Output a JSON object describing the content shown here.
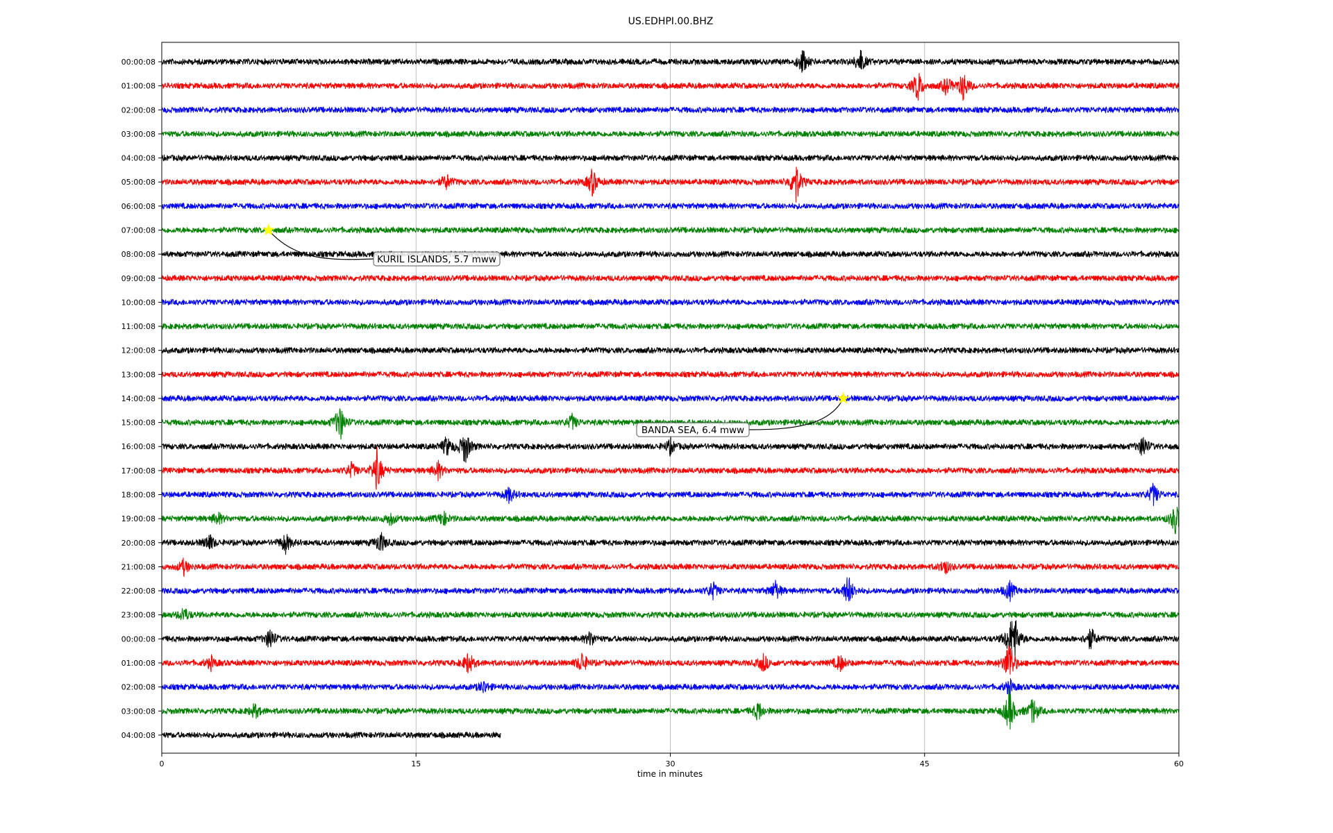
{
  "chart_data": {
    "type": "line",
    "title": "US.EDHPI.00.BHZ",
    "xlabel": "time in minutes",
    "xlim": [
      0,
      60
    ],
    "x_ticks": [
      0,
      15,
      30,
      45,
      60
    ],
    "grid": "vertical",
    "row_labels": [
      "00:00:08",
      "01:00:08",
      "02:00:08",
      "03:00:08",
      "04:00:08",
      "05:00:08",
      "06:00:08",
      "07:00:08",
      "08:00:08",
      "09:00:08",
      "10:00:08",
      "11:00:08",
      "12:00:08",
      "13:00:08",
      "14:00:08",
      "15:00:08",
      "16:00:08",
      "17:00:08",
      "18:00:08",
      "19:00:08",
      "20:00:08",
      "21:00:08",
      "22:00:08",
      "23:00:08",
      "00:00:08",
      "01:00:08",
      "02:00:08",
      "03:00:08",
      "04:00:08"
    ],
    "trace_colors": [
      "#000000",
      "#ff0000",
      "#0000ff",
      "#008000"
    ],
    "last_row_end_minute": 20,
    "events": [
      {
        "label": "KURIL ISLANDS, 5.7 mww",
        "row": 7,
        "minute": 6.3,
        "marker_color": "#ffff00"
      },
      {
        "label": "BANDA SEA, 6.4 mww",
        "row": 14,
        "minute": 40.2,
        "marker_color": "#ffff00"
      }
    ],
    "bursts": [
      {
        "row": 0,
        "minute": 37.8,
        "amplitude": 1.0
      },
      {
        "row": 0,
        "minute": 41.2,
        "amplitude": 1.0
      },
      {
        "row": 1,
        "minute": 44.6,
        "amplitude": 1.3
      },
      {
        "row": 1,
        "minute": 46.3,
        "amplitude": 0.7
      },
      {
        "row": 1,
        "minute": 47.3,
        "amplitude": 1.2
      },
      {
        "row": 5,
        "minute": 16.8,
        "amplitude": 0.6
      },
      {
        "row": 5,
        "minute": 25.4,
        "amplitude": 1.1
      },
      {
        "row": 5,
        "minute": 37.4,
        "amplitude": 1.8
      },
      {
        "row": 15,
        "minute": 10.5,
        "amplitude": 1.6
      },
      {
        "row": 15,
        "minute": 24.2,
        "amplitude": 0.6
      },
      {
        "row": 16,
        "minute": 16.8,
        "amplitude": 0.8
      },
      {
        "row": 16,
        "minute": 17.9,
        "amplitude": 1.5
      },
      {
        "row": 16,
        "minute": 30.0,
        "amplitude": 0.6
      },
      {
        "row": 16,
        "minute": 57.9,
        "amplitude": 0.9
      },
      {
        "row": 17,
        "minute": 11.2,
        "amplitude": 0.6
      },
      {
        "row": 17,
        "minute": 12.7,
        "amplitude": 1.7
      },
      {
        "row": 17,
        "minute": 16.3,
        "amplitude": 0.7
      },
      {
        "row": 18,
        "minute": 20.5,
        "amplitude": 0.6
      },
      {
        "row": 18,
        "minute": 58.5,
        "amplitude": 0.9
      },
      {
        "row": 19,
        "minute": 3.3,
        "amplitude": 0.5
      },
      {
        "row": 19,
        "minute": 13.5,
        "amplitude": 0.5
      },
      {
        "row": 19,
        "minute": 16.6,
        "amplitude": 0.6
      },
      {
        "row": 19,
        "minute": 59.8,
        "amplitude": 1.3
      },
      {
        "row": 20,
        "minute": 2.8,
        "amplitude": 0.7
      },
      {
        "row": 20,
        "minute": 7.3,
        "amplitude": 0.8
      },
      {
        "row": 20,
        "minute": 12.9,
        "amplitude": 0.9
      },
      {
        "row": 21,
        "minute": 1.3,
        "amplitude": 0.6
      },
      {
        "row": 21,
        "minute": 46.2,
        "amplitude": 0.6
      },
      {
        "row": 22,
        "minute": 32.5,
        "amplitude": 0.7
      },
      {
        "row": 22,
        "minute": 36.2,
        "amplitude": 0.8
      },
      {
        "row": 22,
        "minute": 40.5,
        "amplitude": 1.3
      },
      {
        "row": 22,
        "minute": 50.0,
        "amplitude": 0.8
      },
      {
        "row": 23,
        "minute": 1.3,
        "amplitude": 0.6
      },
      {
        "row": 24,
        "minute": 6.4,
        "amplitude": 0.9
      },
      {
        "row": 24,
        "minute": 25.3,
        "amplitude": 0.6
      },
      {
        "row": 24,
        "minute": 50.0,
        "amplitude": 1.0
      },
      {
        "row": 24,
        "minute": 50.3,
        "amplitude": 1.8
      },
      {
        "row": 24,
        "minute": 54.8,
        "amplitude": 0.9
      },
      {
        "row": 25,
        "minute": 2.9,
        "amplitude": 0.5
      },
      {
        "row": 25,
        "minute": 18.1,
        "amplitude": 0.9
      },
      {
        "row": 25,
        "minute": 24.8,
        "amplitude": 0.9
      },
      {
        "row": 25,
        "minute": 35.5,
        "amplitude": 0.7
      },
      {
        "row": 25,
        "minute": 40.0,
        "amplitude": 0.7
      },
      {
        "row": 25,
        "minute": 50.0,
        "amplitude": 2.0
      },
      {
        "row": 26,
        "minute": 19.0,
        "amplitude": 0.5
      },
      {
        "row": 26,
        "minute": 50.0,
        "amplitude": 0.6
      },
      {
        "row": 27,
        "minute": 5.5,
        "amplitude": 0.6
      },
      {
        "row": 27,
        "minute": 35.2,
        "amplitude": 0.8
      },
      {
        "row": 27,
        "minute": 50.0,
        "amplitude": 1.8
      },
      {
        "row": 27,
        "minute": 51.4,
        "amplitude": 1.1
      }
    ]
  }
}
